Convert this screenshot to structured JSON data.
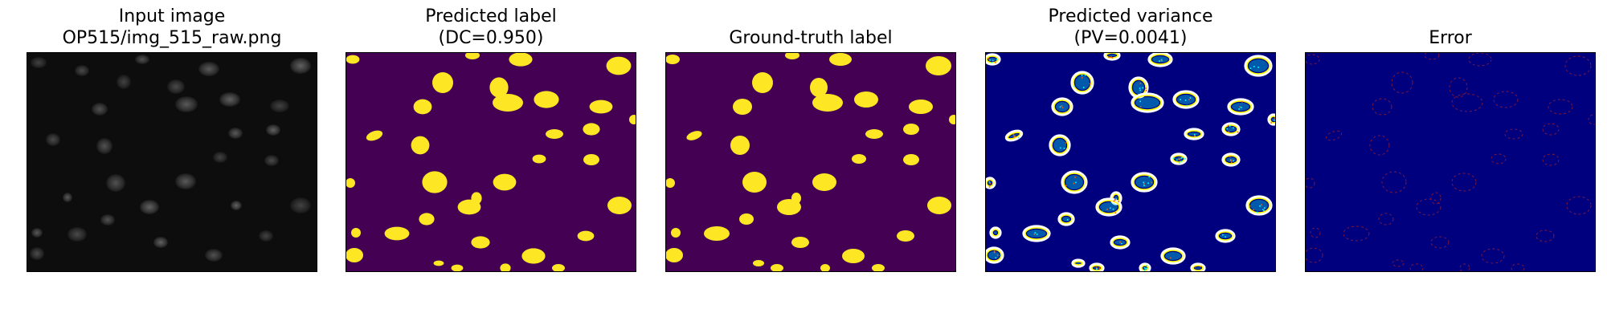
{
  "figure": {
    "panels": [
      {
        "id": "input",
        "title_lines": [
          "Input image",
          "OP515/img_515_raw.png"
        ]
      },
      {
        "id": "pred",
        "title_lines": [
          "Predicted label",
          "(DC=0.950)"
        ]
      },
      {
        "id": "gt",
        "title_lines": [
          "Ground-truth label"
        ]
      },
      {
        "id": "var",
        "title_lines": [
          "Predicted variance",
          "(PV=0.0041)"
        ]
      },
      {
        "id": "err",
        "title_lines": [
          "Error"
        ]
      }
    ],
    "colors": {
      "input_background": "#0d0d0d",
      "label_background": "#440154",
      "label_foreground": "#fde725",
      "variance_background": "#00007f",
      "variance_ring_outer": "#ffffff",
      "variance_ring_mid": "#ffff00",
      "variance_ring_inner": "#00ffff",
      "error_background": "#00007f",
      "error_mark": "#b22222"
    }
  }
}
